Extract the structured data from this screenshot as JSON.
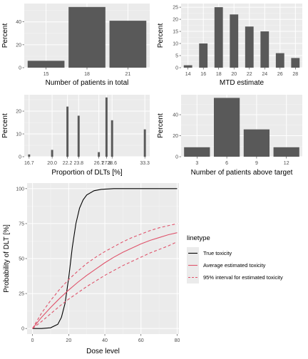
{
  "chart_data": [
    {
      "type": "bar",
      "xlabel": "Number of patients in total",
      "ylabel": "Percent",
      "categories": [
        15,
        18,
        21
      ],
      "values": [
        6,
        53,
        41
      ],
      "xticks": [
        "15",
        "18",
        "21"
      ],
      "yticks": [
        0,
        20,
        40
      ],
      "xlim": [
        13.4,
        22.6
      ],
      "ylim": [
        0,
        56
      ],
      "barwidth": 2.7
    },
    {
      "type": "bar",
      "xlabel": "MTD estimate",
      "ylabel": "Percent",
      "categories": [
        14,
        16,
        18,
        20,
        22,
        24,
        26,
        28
      ],
      "values": [
        1,
        10,
        25,
        22,
        17,
        15,
        6,
        4
      ],
      "xticks": [
        "14",
        "16",
        "18",
        "20",
        "22",
        "24",
        "26",
        "28"
      ],
      "yticks": [
        0,
        5,
        10,
        15,
        20,
        25
      ],
      "xlim": [
        13.1,
        28.9
      ],
      "ylim": [
        0,
        26.5
      ],
      "barwidth": 1.1
    },
    {
      "type": "bar",
      "xlabel": "Proportion of DLTs [%]",
      "ylabel": "Percent",
      "categories": [
        16.7,
        20.0,
        22.2,
        23.8,
        26.7,
        27.8,
        28.6,
        33.3
      ],
      "values": [
        1,
        3,
        22,
        18,
        2,
        26,
        16,
        12
      ],
      "xticks": [
        "16.7",
        "20.0",
        "22.2",
        "23.8",
        "26.7",
        "27.8",
        "28.6",
        "33.3"
      ],
      "xticks_dense": [
        "16.7",
        "20.0",
        "22.2",
        "23.8",
        "26.7",
        "27.8",
        "28.6",
        "33.3"
      ],
      "yticks": [
        0,
        10,
        20
      ],
      "xlim": [
        16.0,
        34.0
      ],
      "ylim": [
        0,
        27.2
      ],
      "barwidth": 0.3
    },
    {
      "type": "bar",
      "xlabel": "Number of patients above target",
      "ylabel": "Percent",
      "categories": [
        3,
        6,
        9,
        12
      ],
      "values": [
        9,
        56,
        26,
        9
      ],
      "xticks": [
        "3",
        "6",
        "9",
        "12"
      ],
      "yticks": [
        0,
        20,
        40
      ],
      "xlim": [
        1.4,
        13.6
      ],
      "ylim": [
        0,
        59
      ],
      "barwidth": 2.6
    },
    {
      "type": "line",
      "xlabel": "Dose level",
      "ylabel": "Probability of DLT [%]",
      "xlim": [
        -3,
        81
      ],
      "ylim": [
        -4,
        104
      ],
      "xticks": [
        0,
        20,
        40,
        60,
        80
      ],
      "yticks": [
        0,
        25,
        50,
        75,
        100
      ],
      "legend_title": "linetype",
      "legend_position": "right",
      "series": [
        {
          "name": "True toxicity",
          "color": "#000000",
          "dash": "solid",
          "x": [
            0,
            5,
            10,
            14,
            16,
            18,
            20,
            22,
            24,
            26,
            28,
            30,
            34,
            38,
            45,
            55,
            65,
            80
          ],
          "y": [
            0,
            0,
            0.5,
            3,
            8,
            18,
            36,
            58,
            75,
            86,
            92,
            95.5,
            98.5,
            99.5,
            100,
            100,
            100,
            100
          ]
        },
        {
          "name": "Average estimated toxicity",
          "color": "#DF536B",
          "dash": "solid",
          "x": [
            0,
            5,
            10,
            15,
            20,
            25,
            30,
            35,
            40,
            45,
            50,
            55,
            60,
            65,
            70,
            75,
            80
          ],
          "y": [
            0,
            8,
            15,
            21.5,
            27.5,
            33,
            38,
            42.5,
            47,
            51,
            54.5,
            57.5,
            60.5,
            63,
            65,
            67,
            68.5
          ]
        },
        {
          "name": "95% interval for estimated toxicity",
          "color": "#DF536B",
          "dash": "dashed",
          "x": [
            0,
            5,
            10,
            15,
            20,
            25,
            30,
            35,
            40,
            45,
            50,
            55,
            60,
            65,
            70,
            75,
            80
          ],
          "y": [
            0,
            11,
            20,
            28,
            35,
            41,
            46.5,
            51,
            55,
            58.5,
            62,
            65,
            67.5,
            70,
            72,
            73.5,
            75
          ]
        },
        {
          "name": "95% interval for estimated toxicity",
          "color": "#DF536B",
          "dash": "dashed",
          "x": [
            0,
            5,
            10,
            15,
            20,
            25,
            30,
            35,
            40,
            45,
            50,
            55,
            60,
            65,
            70,
            75,
            80
          ],
          "y": [
            0,
            5,
            10.5,
            16,
            21,
            25.5,
            30,
            34,
            38,
            41.5,
            45,
            48,
            51,
            54,
            56.5,
            59,
            62
          ]
        }
      ],
      "legend": [
        {
          "label": "True toxicity",
          "color": "#000000",
          "dash": "solid"
        },
        {
          "label": "Average estimated toxicity",
          "color": "#DF536B",
          "dash": "solid"
        },
        {
          "label": "95% interval for estimated toxicity",
          "color": "#DF536B",
          "dash": "dashed"
        }
      ]
    }
  ],
  "style": {
    "panel_bg": "#EBEBEB",
    "grid_major": "#FFFFFF",
    "bar_fill": "#595959"
  }
}
